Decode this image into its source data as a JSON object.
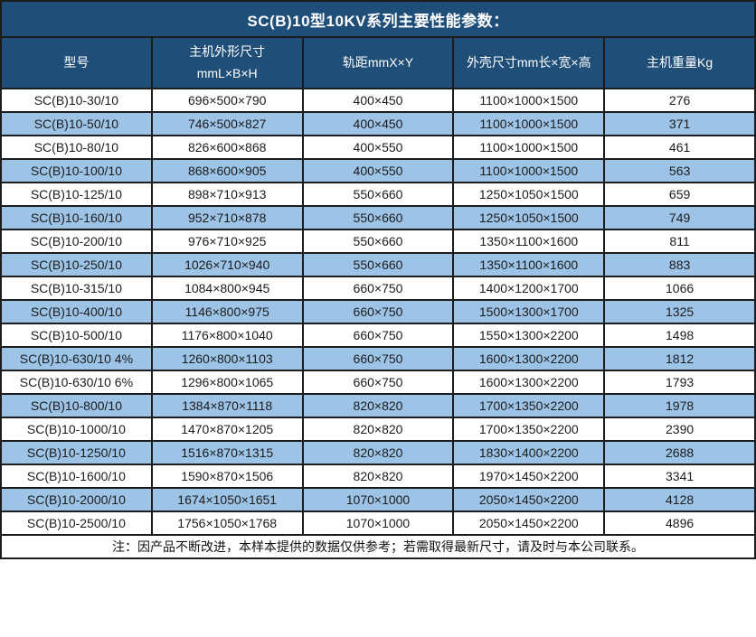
{
  "title": "SC(B)10型10KV系列主要性能参数：",
  "table": {
    "columns": [
      "型号",
      "主机外形尺寸\nmmL×B×H",
      "轨距mmX×Y",
      "外壳尺寸mm长×宽×高",
      "主机重量Kg"
    ],
    "rows": [
      [
        "SC(B)10-30/10",
        "696×500×790",
        "400×450",
        "1100×1000×1500",
        "276"
      ],
      [
        "SC(B)10-50/10",
        "746×500×827",
        "400×450",
        "1100×1000×1500",
        "371"
      ],
      [
        "SC(B)10-80/10",
        "826×600×868",
        "400×550",
        "1100×1000×1500",
        "461"
      ],
      [
        "SC(B)10-100/10",
        "868×600×905",
        "400×550",
        "1100×1000×1500",
        "563"
      ],
      [
        "SC(B)10-125/10",
        "898×710×913",
        "550×660",
        "1250×1050×1500",
        "659"
      ],
      [
        "SC(B)10-160/10",
        "952×710×878",
        "550×660",
        "1250×1050×1500",
        "749"
      ],
      [
        "SC(B)10-200/10",
        "976×710×925",
        "550×660",
        "1350×1100×1600",
        "811"
      ],
      [
        "SC(B)10-250/10",
        "1026×710×940",
        "550×660",
        "1350×1100×1600",
        "883"
      ],
      [
        "SC(B)10-315/10",
        "1084×800×945",
        "660×750",
        "1400×1200×1700",
        "1066"
      ],
      [
        "SC(B)10-400/10",
        "1146×800×975",
        "660×750",
        "1500×1300×1700",
        "1325"
      ],
      [
        "SC(B)10-500/10",
        "1176×800×1040",
        "660×750",
        "1550×1300×2200",
        "1498"
      ],
      [
        "SC(B)10-630/10 4%",
        "1260×800×1103",
        "660×750",
        "1600×1300×2200",
        "1812"
      ],
      [
        "SC(B)10-630/10 6%",
        "1296×800×1065",
        "660×750",
        "1600×1300×2200",
        "1793"
      ],
      [
        "SC(B)10-800/10",
        "1384×870×1118",
        "820×820",
        "1700×1350×2200",
        "1978"
      ],
      [
        "SC(B)10-1000/10",
        "1470×870×1205",
        "820×820",
        "1700×1350×2200",
        "2390"
      ],
      [
        "SC(B)10-1250/10",
        "1516×870×1315",
        "820×820",
        "1830×1400×2200",
        "2688"
      ],
      [
        "SC(B)10-1600/10",
        "1590×870×1506",
        "820×820",
        "1970×1450×2200",
        "3341"
      ],
      [
        "SC(B)10-2000/10",
        "1674×1050×1651",
        "1070×1000",
        "2050×1450×2200",
        "4128"
      ],
      [
        "SC(B)10-2500/10",
        "1756×1050×1768",
        "1070×1000",
        "2050×1450×2200",
        "4896"
      ]
    ]
  },
  "footer": {
    "note": "注：因产品不断改进，本样本提供的数据仅供参考；若需取得最新尺寸，请及时与本公司联系。"
  },
  "colors": {
    "header_bg": "#1F4E79",
    "header_text": "#FFFFFF",
    "stripe_blue": "#9DC3E6",
    "row_white": "#FFFFFF",
    "border": "#1C1C1C",
    "body_text": "#1C1C1C"
  }
}
